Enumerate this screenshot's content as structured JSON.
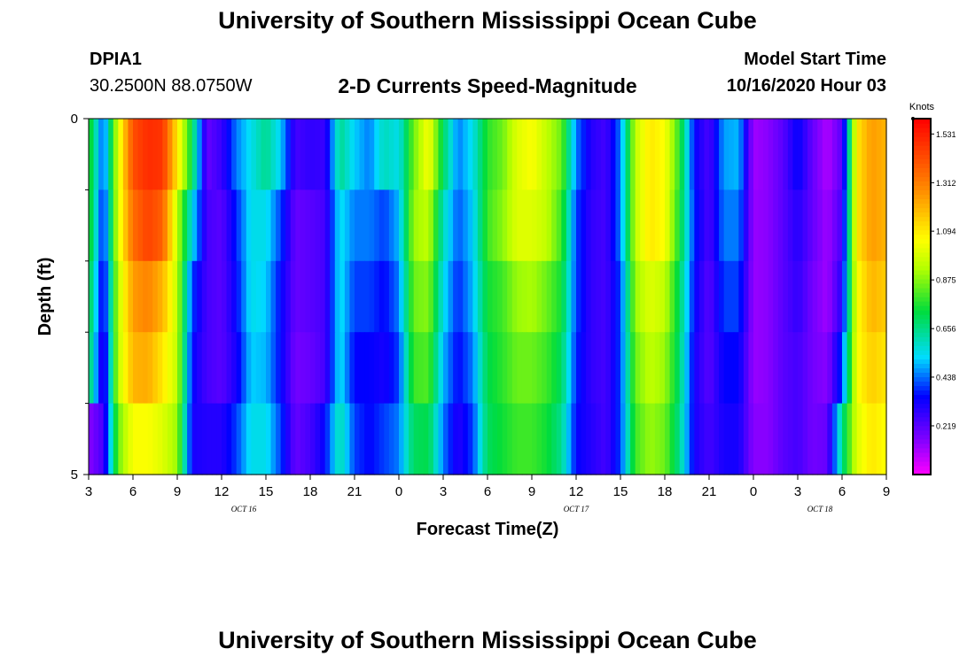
{
  "header": {
    "title": "University of Southern Mississippi Ocean Cube",
    "station_id": "DPIA1",
    "station_coords": "30.2500N 88.0750W",
    "subtitle": "2-D Currents Speed-Magnitude",
    "model_start_label": "Model Start Time",
    "model_start_value": "10/16/2020 Hour 03"
  },
  "footer": {
    "title": "University of Southern Mississippi Ocean Cube"
  },
  "chart_data": {
    "type": "heatmap",
    "title": "2-D Currents Speed-Magnitude",
    "xlabel": "Forecast Time(Z)",
    "ylabel": "Depth (ft)",
    "x_range_hours": [
      0,
      54
    ],
    "x_start": "10/16/2020 Hour 03",
    "x_ticks": [
      {
        "hour": 0,
        "label": "3"
      },
      {
        "hour": 3,
        "label": "6"
      },
      {
        "hour": 6,
        "label": "9"
      },
      {
        "hour": 9,
        "label": "12"
      },
      {
        "hour": 12,
        "label": "15"
      },
      {
        "hour": 15,
        "label": "18"
      },
      {
        "hour": 18,
        "label": "21"
      },
      {
        "hour": 21,
        "label": "0"
      },
      {
        "hour": 24,
        "label": "3"
      },
      {
        "hour": 27,
        "label": "6"
      },
      {
        "hour": 30,
        "label": "9"
      },
      {
        "hour": 33,
        "label": "12"
      },
      {
        "hour": 36,
        "label": "15"
      },
      {
        "hour": 39,
        "label": "18"
      },
      {
        "hour": 42,
        "label": "21"
      },
      {
        "hour": 45,
        "label": "0"
      },
      {
        "hour": 48,
        "label": "3"
      },
      {
        "hour": 51,
        "label": "6"
      },
      {
        "hour": 54,
        "label": "9"
      }
    ],
    "date_labels": [
      {
        "hour": 10.5,
        "label": "OCT 16"
      },
      {
        "hour": 33,
        "label": "OCT 17"
      },
      {
        "hour": 49.5,
        "label": "OCT 18"
      }
    ],
    "y_range_ft": [
      0,
      5
    ],
    "y_tick_labels": [
      {
        "depth": 0,
        "label": "0"
      },
      {
        "depth": 5,
        "label": "5"
      }
    ],
    "y_minor_ticks": [
      1,
      2,
      3,
      4
    ],
    "depth_levels": 5,
    "hourly_speed_knots": [
      [
        0.8,
        0.4,
        1.0,
        1.42,
        1.5,
        1.48,
        1.1,
        0.72,
        0.2,
        0.27,
        0.45,
        0.55,
        0.65,
        0.52,
        0.25,
        0.28,
        0.27,
        0.65,
        0.52,
        0.45,
        0.6,
        0.55,
        0.85,
        1.05,
        0.7,
        0.45,
        0.55,
        0.78,
        0.85,
        1.0,
        1.05,
        0.95,
        0.85,
        0.45,
        0.3,
        0.25,
        0.45,
        0.95,
        1.1,
        1.05,
        0.78,
        0.35,
        0.24,
        0.48,
        0.5,
        0.12,
        0.15,
        0.22,
        0.35,
        0.2,
        0.1,
        0.22,
        1.1,
        1.25,
        1.2
      ],
      [
        0.8,
        0.35,
        1.0,
        1.35,
        1.45,
        1.38,
        0.95,
        0.55,
        0.25,
        0.22,
        0.38,
        0.55,
        0.55,
        0.4,
        0.2,
        0.22,
        0.25,
        0.55,
        0.45,
        0.45,
        0.4,
        0.5,
        0.9,
        0.95,
        0.6,
        0.42,
        0.52,
        0.8,
        0.88,
        1.0,
        1.0,
        0.95,
        0.8,
        0.4,
        0.28,
        0.25,
        0.45,
        0.95,
        1.1,
        1.05,
        0.75,
        0.38,
        0.24,
        0.45,
        0.45,
        0.13,
        0.15,
        0.22,
        0.3,
        0.2,
        0.12,
        0.25,
        1.1,
        1.25,
        1.2
      ],
      [
        0.75,
        0.3,
        0.95,
        1.25,
        1.3,
        1.2,
        0.95,
        0.4,
        0.25,
        0.22,
        0.35,
        0.55,
        0.52,
        0.35,
        0.2,
        0.22,
        0.25,
        0.55,
        0.4,
        0.4,
        0.35,
        0.45,
        0.85,
        0.88,
        0.55,
        0.38,
        0.5,
        0.75,
        0.8,
        0.9,
        0.92,
        0.85,
        0.75,
        0.4,
        0.28,
        0.25,
        0.4,
        0.9,
        1.0,
        0.95,
        0.7,
        0.35,
        0.22,
        0.4,
        0.4,
        0.13,
        0.15,
        0.22,
        0.28,
        0.18,
        0.12,
        0.3,
        1.05,
        1.2,
        1.15
      ],
      [
        0.72,
        0.25,
        0.95,
        1.2,
        1.22,
        1.1,
        0.95,
        0.35,
        0.25,
        0.22,
        0.32,
        0.52,
        0.5,
        0.35,
        0.18,
        0.2,
        0.25,
        0.55,
        0.35,
        0.35,
        0.32,
        0.4,
        0.8,
        0.82,
        0.5,
        0.35,
        0.45,
        0.72,
        0.78,
        0.85,
        0.85,
        0.8,
        0.7,
        0.38,
        0.28,
        0.25,
        0.4,
        0.85,
        0.95,
        0.9,
        0.68,
        0.32,
        0.22,
        0.35,
        0.35,
        0.13,
        0.15,
        0.22,
        0.25,
        0.18,
        0.15,
        0.4,
        1.05,
        1.15,
        1.1
      ],
      [
        0.15,
        0.25,
        0.85,
        1.05,
        1.05,
        1.0,
        0.9,
        0.32,
        0.3,
        0.3,
        0.4,
        0.55,
        0.55,
        0.4,
        0.2,
        0.25,
        0.35,
        0.62,
        0.4,
        0.35,
        0.4,
        0.45,
        0.7,
        0.72,
        0.45,
        0.3,
        0.4,
        0.7,
        0.75,
        0.8,
        0.8,
        0.75,
        0.65,
        0.35,
        0.3,
        0.25,
        0.4,
        0.8,
        0.9,
        0.85,
        0.65,
        0.32,
        0.25,
        0.32,
        0.32,
        0.15,
        0.15,
        0.22,
        0.25,
        0.18,
        0.2,
        0.65,
        1.0,
        1.1,
        1.05
      ]
    ],
    "colorbar": {
      "title": "Knots",
      "min": 0,
      "max": 1.6,
      "tick_labels": [
        "1.531",
        "1.312",
        "1.094",
        "0.875",
        "0.656",
        "0.438",
        "0.219"
      ],
      "tick_values": [
        1.531,
        1.312,
        1.094,
        0.875,
        0.656,
        0.438,
        0.219
      ]
    }
  }
}
